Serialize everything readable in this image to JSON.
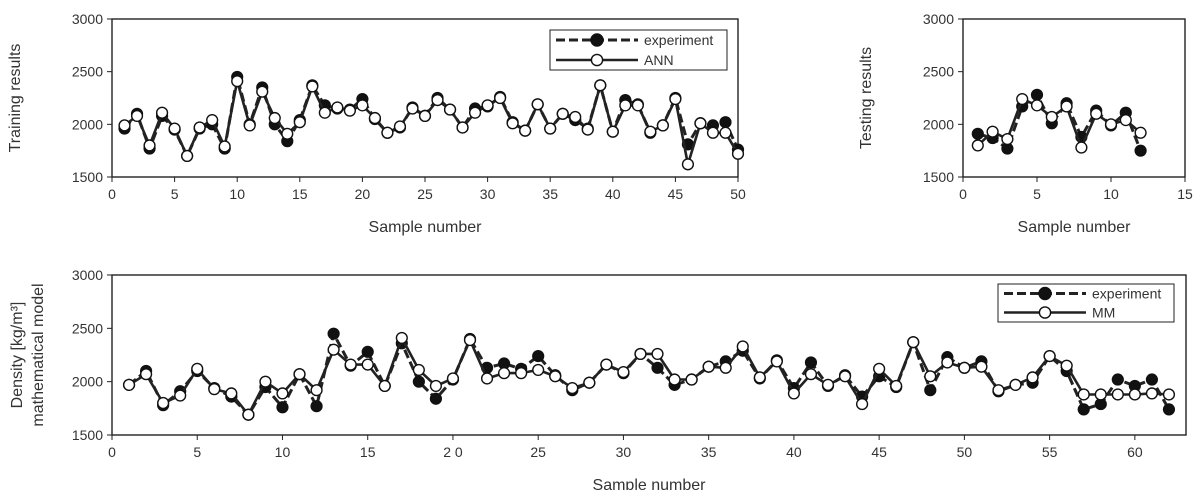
{
  "chart_data": [
    {
      "type": "line",
      "ylabel": "Training results",
      "xlabel": "Sample number",
      "xlim": [
        0,
        50
      ],
      "ylim": [
        1500,
        3000
      ],
      "xticks": [
        0,
        5,
        10,
        15,
        20,
        25,
        30,
        35,
        40,
        45,
        50
      ],
      "yticks": [
        1500,
        2000,
        2500,
        3000
      ],
      "legend": "top-right",
      "series": [
        {
          "name": "experiment",
          "style": "dashed-filled",
          "x": [
            1,
            2,
            3,
            4,
            5,
            6,
            7,
            8,
            9,
            10,
            11,
            12,
            13,
            14,
            15,
            16,
            17,
            18,
            19,
            20,
            21,
            22,
            23,
            24,
            25,
            26,
            27,
            28,
            29,
            30,
            31,
            32,
            33,
            34,
            35,
            36,
            37,
            38,
            39,
            40,
            41,
            42,
            43,
            44,
            45,
            46,
            47,
            48,
            49,
            50
          ],
          "y": [
            1960,
            2100,
            1770,
            2080,
            1950,
            1700,
            1960,
            2000,
            1770,
            2450,
            2000,
            2350,
            2000,
            1840,
            2040,
            2370,
            2180,
            2150,
            2140,
            2240,
            2050,
            1920,
            1970,
            2160,
            2080,
            2250,
            2140,
            1970,
            2150,
            2170,
            2260,
            2020,
            1940,
            2190,
            1960,
            2100,
            2040,
            1960,
            2370,
            1930,
            2230,
            2190,
            1920,
            1990,
            2250,
            1810,
            2010,
            1990,
            2020,
            1760
          ]
        },
        {
          "name": "ANN",
          "style": "solid-open",
          "x": [
            1,
            2,
            3,
            4,
            5,
            6,
            7,
            8,
            9,
            10,
            11,
            12,
            13,
            14,
            15,
            16,
            17,
            18,
            19,
            20,
            21,
            22,
            23,
            24,
            25,
            26,
            27,
            28,
            29,
            30,
            31,
            32,
            33,
            34,
            35,
            36,
            37,
            38,
            39,
            40,
            41,
            42,
            43,
            44,
            45,
            46,
            47,
            48,
            49,
            50
          ],
          "y": [
            1990,
            2080,
            1800,
            2110,
            1960,
            1700,
            1970,
            2040,
            1790,
            2410,
            1990,
            2310,
            2060,
            1910,
            2020,
            2360,
            2110,
            2160,
            2130,
            2180,
            2060,
            1920,
            1980,
            2150,
            2080,
            2230,
            2140,
            1970,
            2110,
            2180,
            2250,
            2010,
            1940,
            2190,
            1960,
            2100,
            2070,
            1950,
            2370,
            1930,
            2180,
            2180,
            1930,
            1990,
            2240,
            1620,
            2010,
            1920,
            1920,
            1720
          ]
        }
      ]
    },
    {
      "type": "line",
      "ylabel": "Testing results",
      "xlabel": "Sample number",
      "xlim": [
        0,
        15
      ],
      "ylim": [
        1500,
        3000
      ],
      "xticks": [
        0,
        5,
        10,
        15
      ],
      "yticks": [
        1500,
        2000,
        2500,
        3000
      ],
      "series": [
        {
          "name": "experiment",
          "style": "dashed-filled",
          "x": [
            1,
            2,
            3,
            4,
            5,
            6,
            7,
            8,
            9,
            10,
            11,
            12
          ],
          "y": [
            1910,
            1870,
            1770,
            2170,
            2280,
            2010,
            2200,
            1880,
            2130,
            1990,
            2110,
            1750
          ]
        },
        {
          "name": "ANN",
          "style": "solid-open",
          "x": [
            1,
            2,
            3,
            4,
            5,
            6,
            7,
            8,
            9,
            10,
            11,
            12
          ],
          "y": [
            1800,
            1930,
            1860,
            2240,
            2180,
            2070,
            2170,
            1780,
            2100,
            2000,
            2040,
            1920
          ]
        }
      ]
    },
    {
      "type": "line",
      "ylabel": "Density [kg/m³]",
      "ylabel2": "mathematical model",
      "xlabel": "Sample number",
      "xlim": [
        0,
        63
      ],
      "ylim": [
        1500,
        3000
      ],
      "xticks": [
        0,
        5,
        10,
        15,
        20,
        25,
        30,
        35,
        40,
        45,
        50,
        55,
        60
      ],
      "xticklabels": [
        "0",
        "5",
        "10",
        "15",
        "2 0",
        "25",
        "30",
        "35",
        "40",
        "45",
        "50",
        "55",
        "60"
      ],
      "yticks": [
        1500,
        2000,
        2500,
        3000
      ],
      "legend": "top-right",
      "series": [
        {
          "name": "experiment",
          "style": "dashed-filled",
          "x": [
            1,
            2,
            3,
            4,
            5,
            6,
            7,
            8,
            9,
            10,
            11,
            12,
            13,
            14,
            15,
            16,
            17,
            18,
            19,
            20,
            21,
            22,
            23,
            24,
            25,
            26,
            27,
            28,
            29,
            30,
            31,
            32,
            33,
            34,
            35,
            36,
            37,
            38,
            39,
            40,
            41,
            42,
            43,
            44,
            45,
            46,
            47,
            48,
            49,
            50,
            51,
            52,
            53,
            54,
            55,
            56,
            57,
            58,
            59,
            60,
            61,
            62
          ],
          "y": [
            1970,
            2100,
            1780,
            1910,
            2100,
            1940,
            1860,
            1690,
            1950,
            1760,
            2070,
            1770,
            2450,
            2150,
            2280,
            1960,
            2360,
            2000,
            1840,
            2020,
            2400,
            2130,
            2170,
            2120,
            2240,
            2060,
            1920,
            1990,
            2160,
            2080,
            2260,
            2130,
            1970,
            2020,
            2140,
            2190,
            2290,
            2030,
            2200,
            1940,
            2180,
            1960,
            2060,
            1860,
            2050,
            1950,
            2370,
            1920,
            2230,
            2130,
            2190,
            1910,
            1970,
            1990,
            2240,
            2100,
            1740,
            1790,
            2020,
            1960,
            2020,
            1740
          ]
        },
        {
          "name": "MM",
          "style": "solid-open",
          "x": [
            1,
            2,
            3,
            4,
            5,
            6,
            7,
            8,
            9,
            10,
            11,
            12,
            13,
            14,
            15,
            16,
            17,
            18,
            19,
            20,
            21,
            22,
            23,
            24,
            25,
            26,
            27,
            28,
            29,
            30,
            31,
            32,
            33,
            34,
            35,
            36,
            37,
            38,
            39,
            40,
            41,
            42,
            43,
            44,
            45,
            46,
            47,
            48,
            49,
            50,
            51,
            52,
            53,
            54,
            55,
            56,
            57,
            58,
            59,
            60,
            61,
            62
          ],
          "y": [
            1970,
            2070,
            1800,
            1870,
            2120,
            1930,
            1890,
            1690,
            2000,
            1890,
            2070,
            1920,
            2300,
            2160,
            2160,
            1960,
            2410,
            2110,
            1960,
            2030,
            2390,
            2030,
            2080,
            2080,
            2110,
            2050,
            1940,
            1990,
            2160,
            2090,
            2260,
            2260,
            2020,
            2020,
            2140,
            2130,
            2330,
            2040,
            2190,
            1890,
            2070,
            1970,
            2050,
            1790,
            2120,
            1960,
            2370,
            2050,
            2180,
            2130,
            2140,
            1920,
            1970,
            2040,
            2240,
            2150,
            1880,
            1880,
            1880,
            1880,
            1890,
            1880
          ]
        }
      ]
    }
  ]
}
